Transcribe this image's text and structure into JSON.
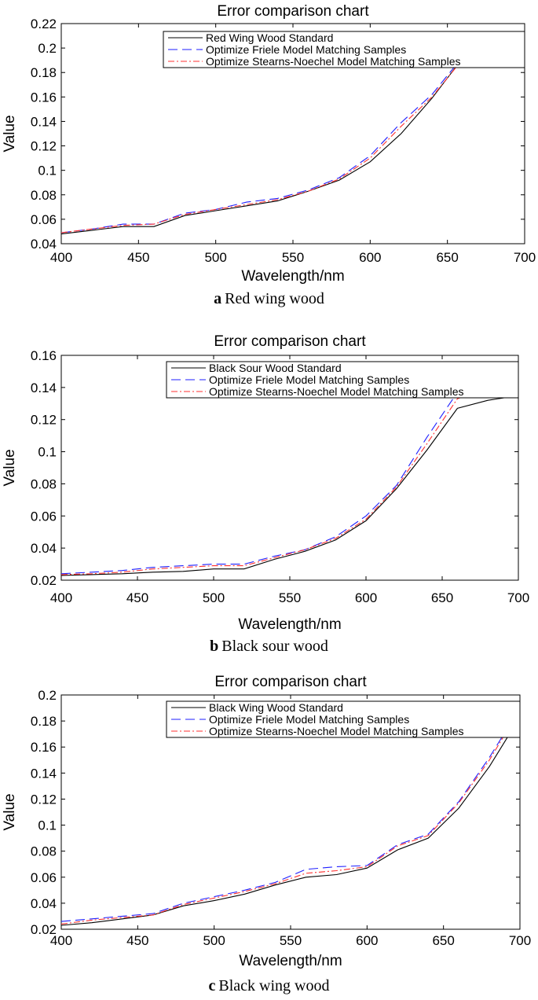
{
  "figure": {
    "captions": [
      {
        "letter": "a",
        "text": "Red wing wood"
      },
      {
        "letter": "b",
        "text": "Black sour wood"
      },
      {
        "letter": "c",
        "text": "Black wing wood"
      }
    ]
  },
  "chart_data": [
    {
      "type": "line",
      "title": "Error comparison chart",
      "xlabel": "Wavelength/nm",
      "ylabel": "Value",
      "xlim": [
        400,
        700
      ],
      "ylim": [
        0.04,
        0.22
      ],
      "xticks": [
        400,
        450,
        500,
        550,
        600,
        650,
        700
      ],
      "yticks": [
        0.04,
        0.06,
        0.08,
        0.1,
        0.12,
        0.14,
        0.16,
        0.18,
        0.2,
        0.22
      ],
      "ytick_labels": [
        "0.04",
        "0.06",
        "0.08",
        "0.1",
        "0.12",
        "0.14",
        "0.16",
        "0.18",
        "0.2",
        "0.22"
      ],
      "grid": false,
      "legend_position": "top-right",
      "x": [
        400,
        420,
        440,
        460,
        480,
        500,
        520,
        540,
        560,
        580,
        600,
        620,
        640,
        660,
        680,
        700
      ],
      "series": [
        {
          "name": "Red Wing Wood Standard",
          "color": "#000000",
          "style": "solid",
          "values": [
            0.048,
            0.051,
            0.054,
            0.054,
            0.063,
            0.067,
            0.071,
            0.075,
            0.083,
            0.092,
            0.107,
            0.13,
            0.159,
            0.192,
            0.194,
            0.196
          ]
        },
        {
          "name": "Optimize Friele Model Matching Samples",
          "color": "#1f1fff",
          "style": "dashed",
          "values": [
            0.049,
            0.052,
            0.056,
            0.056,
            0.065,
            0.068,
            0.074,
            0.077,
            0.084,
            0.094,
            0.112,
            0.139,
            0.162,
            0.193,
            0.197,
            0.202
          ]
        },
        {
          "name": "Optimize Stearns-Noechel Model Matching Samples",
          "color": "#ff3030",
          "style": "dashdot",
          "values": [
            0.049,
            0.052,
            0.055,
            0.056,
            0.064,
            0.068,
            0.072,
            0.076,
            0.083,
            0.093,
            0.11,
            0.136,
            0.16,
            0.191,
            0.195,
            0.2
          ]
        }
      ]
    },
    {
      "type": "line",
      "title": "Error comparison chart",
      "xlabel": "Wavelength/nm",
      "ylabel": "Value",
      "xlim": [
        400,
        700
      ],
      "ylim": [
        0.02,
        0.16
      ],
      "xticks": [
        400,
        450,
        500,
        550,
        600,
        650,
        700
      ],
      "yticks": [
        0.02,
        0.04,
        0.06,
        0.08,
        0.1,
        0.12,
        0.14,
        0.16
      ],
      "ytick_labels": [
        "0.02",
        "0.04",
        "0.06",
        "0.08",
        "0.1",
        "0.12",
        "0.14",
        "0.16"
      ],
      "grid": false,
      "legend_position": "top-right",
      "x": [
        400,
        420,
        440,
        460,
        480,
        500,
        520,
        540,
        560,
        580,
        600,
        620,
        640,
        660,
        680,
        700
      ],
      "series": [
        {
          "name": "Black Sour Wood Standard",
          "color": "#000000",
          "style": "solid",
          "values": [
            0.023,
            0.0235,
            0.024,
            0.025,
            0.0255,
            0.027,
            0.027,
            0.033,
            0.038,
            0.045,
            0.057,
            0.077,
            0.101,
            0.127,
            0.132,
            0.135
          ]
        },
        {
          "name": "Optimize Friele Model Matching Samples",
          "color": "#1f1fff",
          "style": "dashed",
          "values": [
            0.024,
            0.025,
            0.026,
            0.028,
            0.029,
            0.03,
            0.03,
            0.035,
            0.039,
            0.047,
            0.06,
            0.079,
            0.109,
            0.137,
            0.143,
            0.147
          ]
        },
        {
          "name": "Optimize Stearns-Noechel Model Matching Samples",
          "color": "#ff3030",
          "style": "dashdot",
          "values": [
            0.0235,
            0.024,
            0.025,
            0.027,
            0.028,
            0.029,
            0.029,
            0.034,
            0.039,
            0.046,
            0.058,
            0.078,
            0.105,
            0.133,
            0.14,
            0.142
          ]
        }
      ]
    },
    {
      "type": "line",
      "title": "Error comparison chart",
      "xlabel": "Wavelength/nm",
      "ylabel": "Value",
      "xlim": [
        400,
        700
      ],
      "ylim": [
        0.02,
        0.2
      ],
      "xticks": [
        400,
        450,
        500,
        550,
        600,
        650,
        700
      ],
      "yticks": [
        0.02,
        0.04,
        0.06,
        0.08,
        0.1,
        0.12,
        0.14,
        0.16,
        0.18,
        0.2
      ],
      "ytick_labels": [
        "0.02",
        "0.04",
        "0.06",
        "0.08",
        "0.1",
        "0.12",
        "0.14",
        "0.16",
        "0.18",
        "0.2"
      ],
      "grid": false,
      "legend_position": "top-right",
      "x": [
        400,
        420,
        440,
        460,
        480,
        500,
        520,
        540,
        560,
        580,
        600,
        620,
        640,
        660,
        680,
        700
      ],
      "series": [
        {
          "name": "Black Wing Wood Standard",
          "color": "#000000",
          "style": "solid",
          "values": [
            0.023,
            0.025,
            0.028,
            0.031,
            0.038,
            0.042,
            0.047,
            0.054,
            0.06,
            0.062,
            0.067,
            0.081,
            0.09,
            0.113,
            0.145,
            0.183
          ]
        },
        {
          "name": "Optimize Friele Model Matching Samples",
          "color": "#1f1fff",
          "style": "dashed",
          "values": [
            0.026,
            0.028,
            0.03,
            0.032,
            0.04,
            0.045,
            0.05,
            0.056,
            0.066,
            0.068,
            0.069,
            0.085,
            0.093,
            0.118,
            0.152,
            0.19
          ]
        },
        {
          "name": "Optimize Stearns-Noechel Model Matching Samples",
          "color": "#ff3030",
          "style": "dashdot",
          "values": [
            0.024,
            0.027,
            0.029,
            0.031,
            0.039,
            0.044,
            0.049,
            0.055,
            0.063,
            0.065,
            0.068,
            0.084,
            0.092,
            0.117,
            0.15,
            0.189
          ]
        }
      ]
    }
  ]
}
